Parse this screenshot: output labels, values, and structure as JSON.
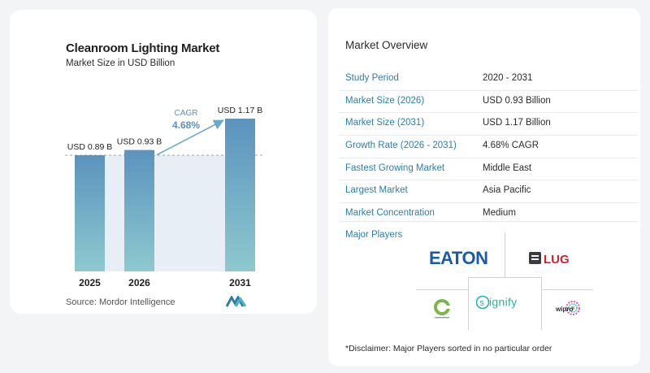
{
  "chart": {
    "title": "Cleanroom Lighting Market",
    "subtitle": "Market Size in USD Billion",
    "source": "Source:  Mordor Intelligence",
    "cagr_label": "CAGR",
    "cagr_value": "4.68%"
  },
  "chart_data": {
    "type": "bar",
    "title": "Cleanroom Lighting Market",
    "subtitle": "Market Size in USD Billion",
    "categories": [
      "2025",
      "2026",
      "2031"
    ],
    "values": [
      0.89,
      0.93,
      1.17
    ],
    "data_labels": [
      "USD 0.89 B",
      "USD 0.93 B",
      "USD 1.17 B"
    ],
    "ylim": [
      0,
      1.17
    ],
    "annotation": {
      "label": "CAGR",
      "value": "4.68%"
    },
    "colors": {
      "bar_top": "#5b93bd",
      "bar_bottom": "#8ec9cf",
      "arrow": "#6aa8cf",
      "shade": "#e8eef5"
    }
  },
  "overview": {
    "title": "Market Overview",
    "rows": [
      {
        "key": "Study Period",
        "value": "2020 - 2031"
      },
      {
        "key": "Market Size (2026)",
        "value": "USD 0.93 Billion"
      },
      {
        "key": "Market Size (2031)",
        "value": "USD 1.17 Billion"
      },
      {
        "key": "Growth Rate (2026 - 2031)",
        "value": "4.68% CAGR"
      },
      {
        "key": "Fastest Growing Market",
        "value": "Middle East"
      },
      {
        "key": "Largest Market",
        "value": "Asia Pacific"
      },
      {
        "key": "Market Concentration",
        "value": "Medium"
      }
    ],
    "players_title": "Major Players",
    "players": [
      {
        "name": "EATON",
        "icon": "eaton-logo",
        "color": "#1b5aa8"
      },
      {
        "name": "LUG",
        "icon": "lug-logo",
        "color": "#d2232a"
      },
      {
        "name": "Signify",
        "icon": "signify-logo",
        "color": "#21b5a8"
      },
      {
        "name": "wipro",
        "icon": "wipro-logo",
        "color": "#2b2b2b"
      },
      {
        "name": "Cooper Lighting",
        "icon": "cooper-logo",
        "color": "#7ab648"
      }
    ],
    "disclaimer": "*Disclaimer: Major Players sorted in no particular order"
  }
}
